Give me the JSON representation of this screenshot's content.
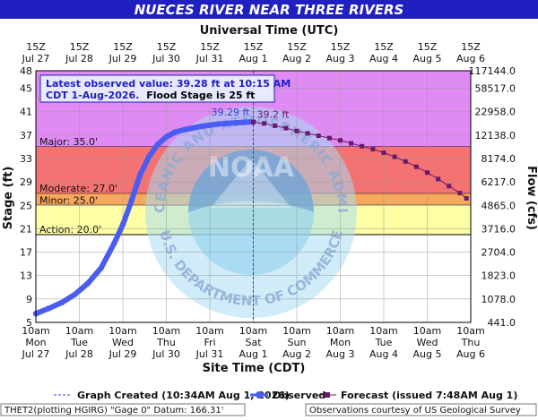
{
  "chart_data": {
    "type": "line",
    "title": "NUECES RIVER NEAR THREE RIVERS",
    "top_axis_title": "Universal Time (UTC)",
    "bottom_axis_title": "Site Time (CDT)",
    "ylabel_left": "Stage (ft)",
    "ylabel_right": "Flow (cfs)",
    "ylim": [
      5,
      48
    ],
    "yticks": [
      5,
      9,
      13,
      17,
      21,
      25,
      29,
      33,
      37,
      41,
      45,
      48
    ],
    "flow_ticks": [
      {
        "stage": 5,
        "label": "441.0"
      },
      {
        "stage": 9,
        "label": "1078.0"
      },
      {
        "stage": 13,
        "label": "1823.0"
      },
      {
        "stage": 17,
        "label": "2704.0"
      },
      {
        "stage": 21,
        "label": "3716.0"
      },
      {
        "stage": 25,
        "label": "4865.0"
      },
      {
        "stage": 29,
        "label": "6217.0"
      },
      {
        "stage": 33,
        "label": "8174.0"
      },
      {
        "stage": 37,
        "label": "12138.0"
      },
      {
        "stage": 41,
        "label": "22958.0"
      },
      {
        "stage": 45,
        "label": "58517.0"
      },
      {
        "stage": 48,
        "label": "117144.0"
      }
    ],
    "xlim_days": [
      0,
      10
    ],
    "bottom_ticks": [
      {
        "t": "10am",
        "d": "Mon",
        "date": "Jul 27"
      },
      {
        "t": "10am",
        "d": "Tue",
        "date": "Jul 28"
      },
      {
        "t": "10am",
        "d": "Wed",
        "date": "Jul 29"
      },
      {
        "t": "10am",
        "d": "Thu",
        "date": "Jul 30"
      },
      {
        "t": "10am",
        "d": "Fri",
        "date": "Jul 31"
      },
      {
        "t": "10am",
        "d": "Sat",
        "date": "Aug 1"
      },
      {
        "t": "10am",
        "d": "Sun",
        "date": "Aug 2"
      },
      {
        "t": "10am",
        "d": "Mon",
        "date": "Aug 3"
      },
      {
        "t": "10am",
        "d": "Tue",
        "date": "Aug 4"
      },
      {
        "t": "10am",
        "d": "Wed",
        "date": "Aug 5"
      },
      {
        "t": "10am",
        "d": "Thu",
        "date": "Aug 6"
      }
    ],
    "top_ticks": [
      {
        "t": "15Z",
        "date": "Jul 27"
      },
      {
        "t": "15Z",
        "date": "Jul 28"
      },
      {
        "t": "15Z",
        "date": "Jul 29"
      },
      {
        "t": "15Z",
        "date": "Jul 30"
      },
      {
        "t": "15Z",
        "date": "Jul 31"
      },
      {
        "t": "15Z",
        "date": "Aug 1"
      },
      {
        "t": "15Z",
        "date": "Aug 2"
      },
      {
        "t": "15Z",
        "date": "Aug 3"
      },
      {
        "t": "15Z",
        "date": "Aug 4"
      },
      {
        "t": "15Z",
        "date": "Aug 5"
      },
      {
        "t": "15Z",
        "date": "Aug 6"
      }
    ],
    "bands": [
      {
        "name": "Major",
        "label": "Major: 35.0'",
        "from": 35,
        "to": 48,
        "color": "#e08af3"
      },
      {
        "name": "Moderate",
        "label": "Moderate: 27.0'",
        "from": 27,
        "to": 35,
        "color": "#f47272"
      },
      {
        "name": "Minor",
        "label": "Minor: 25.0'",
        "from": 25,
        "to": 27,
        "color": "#f6a85c"
      },
      {
        "name": "Action",
        "label": "Action: 20.0'",
        "from": 20,
        "to": 25,
        "color": "#fefea4"
      }
    ],
    "observed": {
      "name": "Observed",
      "color": "#4a5cf2",
      "x": [
        0,
        0.3,
        0.6,
        0.9,
        1.2,
        1.5,
        1.8,
        2.0,
        2.2,
        2.4,
        2.6,
        2.8,
        3.0,
        3.2,
        3.4,
        3.6,
        3.8,
        4.0,
        4.2,
        4.4,
        4.6,
        4.8,
        5.0
      ],
      "y": [
        6.5,
        7.4,
        8.4,
        9.8,
        11.7,
        14.3,
        18.5,
        21.7,
        25.8,
        30.3,
        33.3,
        35.4,
        36.7,
        37.5,
        37.9,
        38.2,
        38.5,
        38.7,
        38.9,
        39.0,
        39.1,
        39.2,
        39.28
      ]
    },
    "forecast": {
      "name": "Forecast",
      "legend_label": "Forecast (issued 7:48AM Aug 1)",
      "color": "#6a1a6a",
      "x": [
        5.0,
        5.25,
        5.5,
        5.75,
        6.0,
        6.25,
        6.5,
        6.75,
        7.0,
        7.25,
        7.5,
        7.75,
        8.0,
        8.25,
        8.5,
        8.75,
        9.0,
        9.25,
        9.5,
        9.75,
        9.9
      ],
      "y": [
        39.2,
        39.0,
        38.6,
        38.2,
        37.7,
        37.3,
        36.9,
        36.5,
        36.1,
        35.6,
        35.1,
        34.6,
        34.0,
        33.3,
        32.5,
        31.6,
        30.6,
        29.5,
        28.3,
        27.1,
        26.2
      ]
    },
    "crest_labels": {
      "observed": "39.29 ft",
      "forecast": "39.2 ft"
    },
    "latest_x": 5.0,
    "info_box": {
      "line1": "Latest observed value: 39.28 ft at 10:15 AM",
      "line2_value": "CDT 1-Aug-2026.",
      "line2_flood": "Flood Stage is 25 ft"
    },
    "watermark_text": "NATIONAL OCEANIC AND ATMOSPHERIC ADMINISTRATION",
    "watermark_center": "NOAA",
    "watermark_bottom": "U.S. DEPARTMENT OF COMMERCE",
    "legend": {
      "graph_created": "Graph Created (10:34AM Aug 1, 2026)",
      "observed": "Observed",
      "forecast": "Forecast (issued 7:48AM Aug 1)"
    },
    "footer": {
      "left": "THET2(plotting HGIRG) \"Gage 0\" Datum: 166.31'",
      "right": "Observations courtesy of US Geological Survey"
    }
  }
}
